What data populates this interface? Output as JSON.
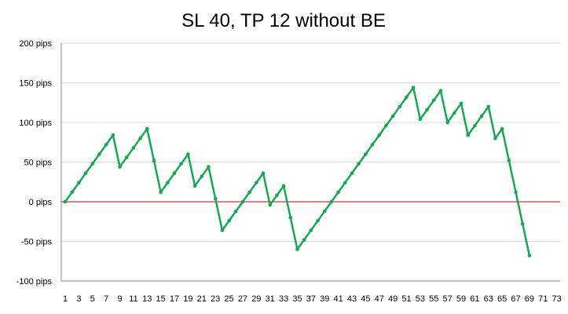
{
  "chart_data": {
    "type": "line",
    "title": "SL 40, TP 12 without BE",
    "xlabel": "",
    "ylabel": "",
    "ylim": [
      -100,
      200
    ],
    "xlim": [
      1,
      73
    ],
    "y_tick_values": [
      -100,
      -50,
      0,
      50,
      100,
      150,
      200
    ],
    "y_tick_labels": [
      "-100 pips",
      "-50 pips",
      "0 pips",
      "50 pips",
      "100 pips",
      "150 pips",
      "200 pips"
    ],
    "x_tick_labels": [
      "1",
      "3",
      "5",
      "7",
      "9",
      "11",
      "13",
      "15",
      "17",
      "19",
      "21",
      "23",
      "25",
      "27",
      "29",
      "31",
      "33",
      "35",
      "37",
      "39",
      "41",
      "43",
      "45",
      "47",
      "49",
      "51",
      "53",
      "55",
      "57",
      "59",
      "61",
      "63",
      "65",
      "67",
      "69",
      "71",
      "73"
    ],
    "grid": "y-axis horizontal lines",
    "legend": "none",
    "colors": {
      "series": "#1aa557",
      "zero_line": "#c00000",
      "grid": "#d9d9d9",
      "axis": "#868686"
    },
    "series": [
      {
        "x": [
          1,
          2,
          3,
          4,
          5,
          6,
          7,
          8,
          9,
          10,
          11,
          12,
          13,
          14,
          15,
          16,
          17,
          18,
          19,
          20,
          21,
          22,
          23,
          24,
          25,
          26,
          27,
          28,
          29,
          30,
          31,
          32,
          33,
          34,
          35,
          36,
          37,
          38,
          39,
          40,
          41,
          42,
          43,
          44,
          45,
          46,
          47,
          48,
          49,
          50,
          51,
          52,
          53,
          54,
          55,
          56,
          57,
          58,
          59,
          60,
          61,
          62,
          63,
          64,
          65,
          66,
          67,
          68,
          69
        ],
        "values": [
          0,
          12,
          24,
          36,
          48,
          60,
          72,
          84,
          44,
          56,
          68,
          80,
          92,
          52,
          12,
          24,
          36,
          48,
          60,
          20,
          32,
          44,
          4,
          -36,
          -24,
          -12,
          0,
          12,
          24,
          36,
          -4,
          8,
          20,
          -20,
          -60,
          -48,
          -36,
          -24,
          -12,
          0,
          12,
          24,
          36,
          48,
          60,
          72,
          84,
          96,
          108,
          120,
          132,
          144,
          104,
          116,
          128,
          140,
          100,
          112,
          124,
          84,
          96,
          108,
          120,
          80,
          92,
          52,
          12,
          -28,
          -68
        ]
      }
    ]
  }
}
